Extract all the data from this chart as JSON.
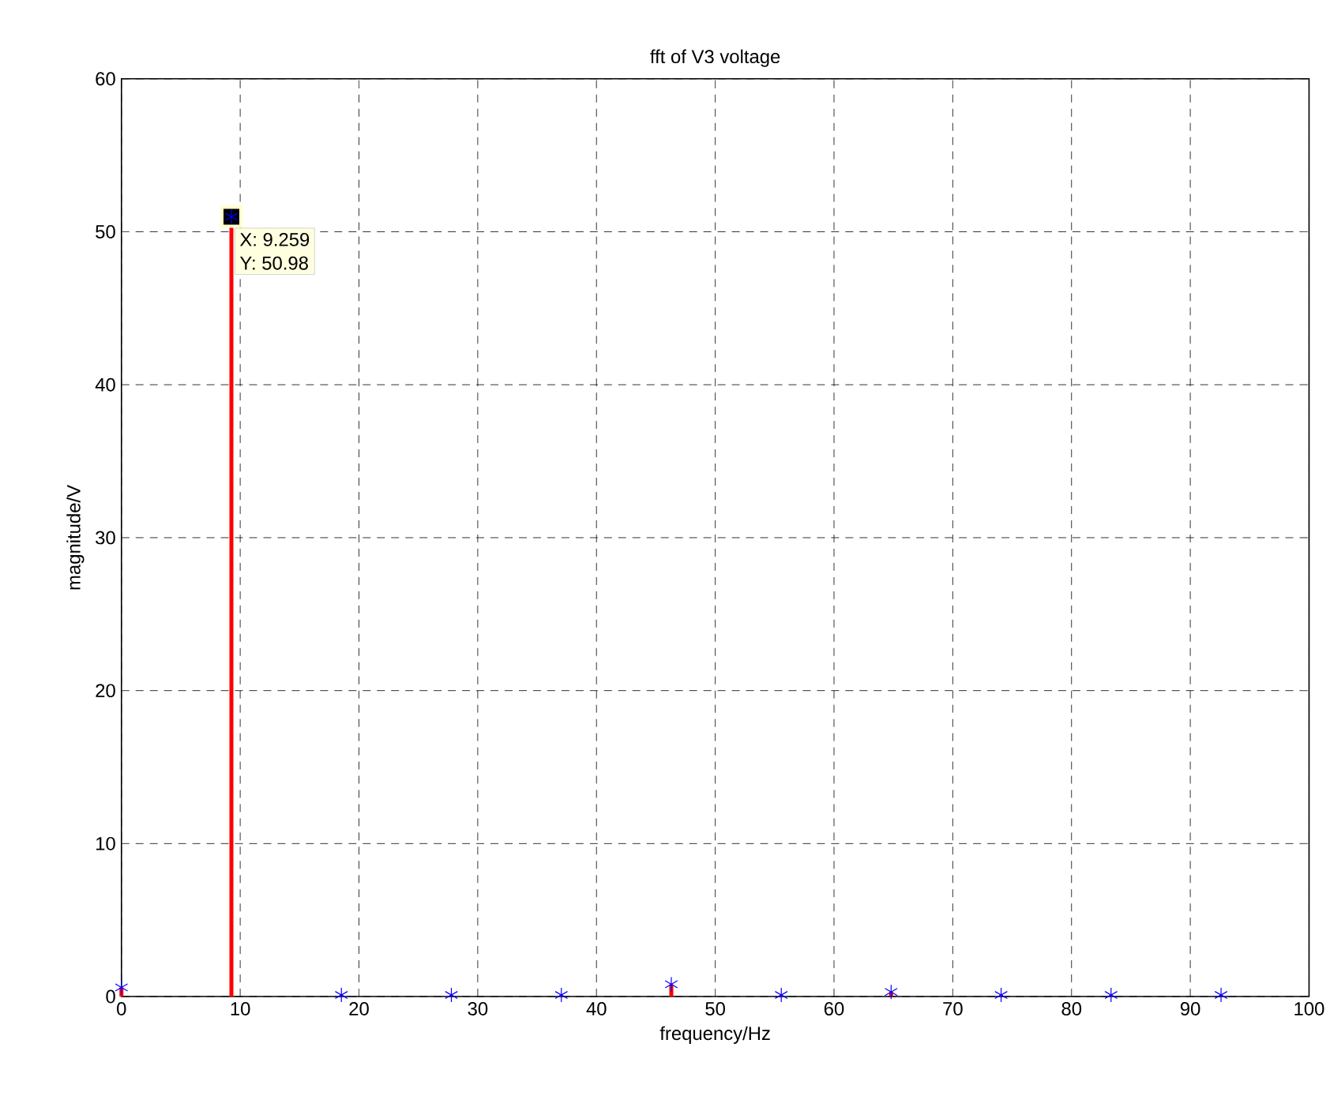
{
  "chart_data": {
    "type": "lollipop",
    "title": "fft of V3 voltage",
    "xlabel": "frequency/Hz",
    "ylabel": "magnitude/V",
    "x": [
      0,
      9.259,
      18.52,
      27.78,
      37.04,
      46.3,
      55.56,
      64.81,
      74.07,
      83.33,
      92.59
    ],
    "series": [
      {
        "color": "#0000ff",
        "values": [
          0.6,
          50.98,
          0.1,
          0.1,
          0.1,
          0.8,
          0.1,
          0.3,
          0.1,
          0.1,
          0.1
        ]
      }
    ],
    "marker": "cross",
    "grid": true,
    "xlim": [
      0,
      100
    ],
    "xticks": [
      0,
      10,
      20,
      30,
      40,
      50,
      60,
      70,
      80,
      90,
      100
    ],
    "ylim": [
      0,
      60
    ],
    "yticks": [
      0,
      10,
      20,
      30,
      40,
      50,
      60
    ],
    "annotations": [
      {
        "text": "X: 9.259",
        "x": 9.259,
        "y": 50.98
      },
      {
        "text": "Y: 50.98",
        "x": 9.259,
        "y": 50.98
      }
    ]
  }
}
